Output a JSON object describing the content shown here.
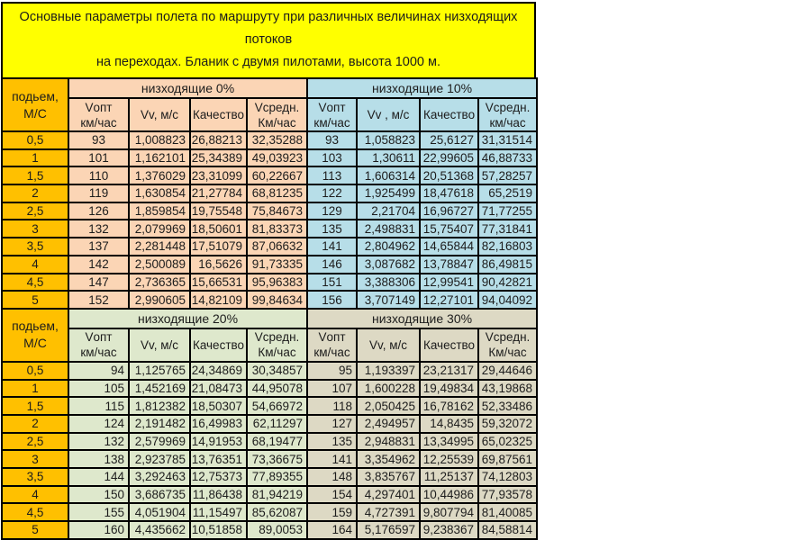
{
  "title": {
    "line1": "Основные параметры полета по маршруту при различных величинах низходящих потоков",
    "line2": "на переходах. Бланик с двумя пилотами, высота 1000 м."
  },
  "colors": {
    "title_bg": "#FFFF00",
    "climb_bg": "#FFC000",
    "section_0_bg": "#FBD5B5",
    "section_10_bg": "#B7DEE8",
    "section_20_bg": "#DEE8CC",
    "section_30_bg": "#DDD9C4",
    "border": "#000000"
  },
  "climb_header": [
    "подьем,",
    "М/С"
  ],
  "climb_values": [
    "0,5",
    "1",
    "1,5",
    "2",
    "2,5",
    "3",
    "3,5",
    "4",
    "4,5",
    "5"
  ],
  "tables": [
    {
      "sections": [
        {
          "band_label": "низходящие 0%",
          "bg": "#FBD5B5",
          "col_headers": [
            [
              "Vопт",
              "км/час"
            ],
            [
              "Vv, м/с"
            ],
            [
              "Качество"
            ],
            [
              "Vсредн.",
              "Км/час"
            ]
          ],
          "rows": [
            [
              "93",
              "1,008823",
              "26,88213",
              "32,35288"
            ],
            [
              "101",
              "1,162101",
              "25,34389",
              "49,03923"
            ],
            [
              "110",
              "1,376029",
              "23,31099",
              "60,22667"
            ],
            [
              "119",
              "1,630854",
              "21,27784",
              "68,81235"
            ],
            [
              "126",
              "1,859854",
              "19,75548",
              "75,84673"
            ],
            [
              "132",
              "2,079969",
              "18,50601",
              "81,83373"
            ],
            [
              "137",
              "2,281448",
              "17,51079",
              "87,06632"
            ],
            [
              "142",
              "2,500089",
              "16,5626",
              "91,73335"
            ],
            [
              "147",
              "2,736365",
              "15,66531",
              "95,96383"
            ],
            [
              "152",
              "2,990605",
              "14,82109",
              "99,84634"
            ]
          ]
        },
        {
          "band_label": "низходящие 10%",
          "bg": "#B7DEE8",
          "col_headers": [
            [
              "Vопт",
              "км/час"
            ],
            [
              "Vv , м/с"
            ],
            [
              "Качество"
            ],
            [
              "Vсредн.",
              "км/час"
            ]
          ],
          "rows": [
            [
              "93",
              "1,058823",
              "25,6127",
              "31,31514"
            ],
            [
              "103",
              "1,30611",
              "22,99605",
              "46,88733"
            ],
            [
              "113",
              "1,606314",
              "20,51368",
              "57,28257"
            ],
            [
              "122",
              "1,925499",
              "18,47618",
              "65,2519"
            ],
            [
              "129",
              "2,21704",
              "16,96727",
              "71,77255"
            ],
            [
              "135",
              "2,498831",
              "15,75407",
              "77,31841"
            ],
            [
              "141",
              "2,804962",
              "14,65844",
              "82,16803"
            ],
            [
              "146",
              "3,087682",
              "13,78847",
              "86,49815"
            ],
            [
              "151",
              "3,388306",
              "12,99541",
              "90,42821"
            ],
            [
              "156",
              "3,707149",
              "12,27101",
              "94,04092"
            ]
          ]
        }
      ]
    },
    {
      "sections": [
        {
          "band_label": "низходящие 20%",
          "bg": "#DEE8CC",
          "col_headers": [
            [
              "Vопт",
              "км/час"
            ],
            [
              "Vv, м/с"
            ],
            [
              "Качество"
            ],
            [
              "Vсредн.",
              "Км/час"
            ]
          ],
          "rows": [
            [
              "94",
              "1,125765",
              "24,34869",
              "30,34857"
            ],
            [
              "105",
              "1,452169",
              "21,08473",
              "44,95078"
            ],
            [
              "115",
              "1,812382",
              "18,50307",
              "54,66972"
            ],
            [
              "124",
              "2,191482",
              "16,49983",
              "62,11297"
            ],
            [
              "132",
              "2,579969",
              "14,91953",
              "68,19477"
            ],
            [
              "138",
              "2,923785",
              "13,76351",
              "73,36675"
            ],
            [
              "144",
              "3,292463",
              "12,75373",
              "77,89355"
            ],
            [
              "150",
              "3,686735",
              "11,86438",
              "81,94219"
            ],
            [
              "155",
              "4,051904",
              "11,15497",
              "85,62087"
            ],
            [
              "160",
              "4,435662",
              "10,51858",
              "89,0053"
            ]
          ]
        },
        {
          "band_label": "низходящие 30%",
          "bg": "#DDD9C4",
          "col_headers": [
            [
              "Vопт",
              "км/час"
            ],
            [
              "Vv, м/с"
            ],
            [
              "Качество"
            ],
            [
              "Vсредн.",
              "Км/час"
            ]
          ],
          "rows": [
            [
              "95",
              "1,193397",
              "23,21317",
              "29,44646"
            ],
            [
              "107",
              "1,600228",
              "19,49834",
              "43,19868"
            ],
            [
              "118",
              "2,050425",
              "16,78162",
              "52,33486"
            ],
            [
              "127",
              "2,494957",
              "14,8435",
              "59,32072"
            ],
            [
              "135",
              "2,948831",
              "13,34995",
              "65,02325"
            ],
            [
              "141",
              "3,354962",
              "12,25539",
              "69,87561"
            ],
            [
              "148",
              "3,835767",
              "11,25137",
              "74,12803"
            ],
            [
              "154",
              "4,297401",
              "10,44986",
              "77,93578"
            ],
            [
              "159",
              "4,727391",
              "9,807794",
              "81,40085"
            ],
            [
              "164",
              "5,176597",
              "9,238367",
              "84,58814"
            ]
          ]
        }
      ]
    }
  ]
}
